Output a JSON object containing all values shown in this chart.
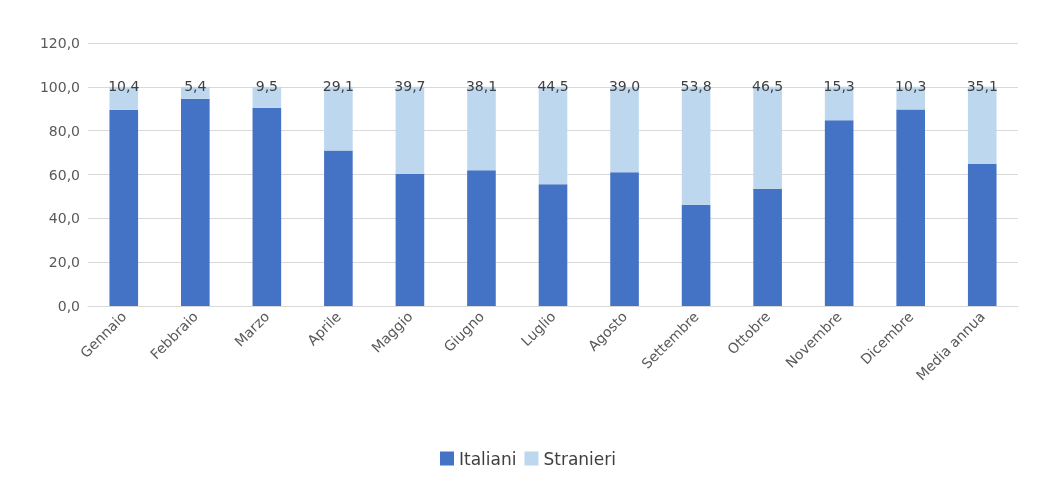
{
  "chart_data": {
    "type": "bar",
    "stacked": true,
    "categories": [
      "Gennaio",
      "Febbraio",
      "Marzo",
      "Aprile",
      "Maggio",
      "Giugno",
      "Luglio",
      "Agosto",
      "Settembre",
      "Ottobre",
      "Novembre",
      "Dicembre",
      "Media annua"
    ],
    "series": [
      {
        "name": "Italiani",
        "color": "#4472c4",
        "values": [
          89.6,
          94.6,
          90.5,
          70.9,
          60.3,
          61.9,
          55.5,
          61.0,
          46.2,
          53.5,
          84.7,
          89.7,
          64.9
        ]
      },
      {
        "name": "Stranieri",
        "color": "#bdd7ee",
        "values": [
          10.4,
          5.4,
          9.5,
          29.1,
          39.7,
          38.1,
          44.5,
          39.0,
          53.8,
          46.5,
          15.3,
          10.3,
          35.1
        ],
        "value_labels": [
          "10,4",
          "5,4",
          "9,5",
          "29,1",
          "39,7",
          "38,1",
          "44,5",
          "39,0",
          "53,8",
          "46,5",
          "15,3",
          "10,3",
          "35,1"
        ]
      }
    ],
    "ylim": [
      0,
      120
    ],
    "yticks": [
      {
        "value": 0,
        "label": "0,0"
      },
      {
        "value": 20,
        "label": "20,0"
      },
      {
        "value": 40,
        "label": "40,0"
      },
      {
        "value": 60,
        "label": "60,0"
      },
      {
        "value": 80,
        "label": "80,0"
      },
      {
        "value": 100,
        "label": "100,0"
      },
      {
        "value": 120,
        "label": "120,0"
      }
    ],
    "grid": "y",
    "legend": "bottom"
  }
}
